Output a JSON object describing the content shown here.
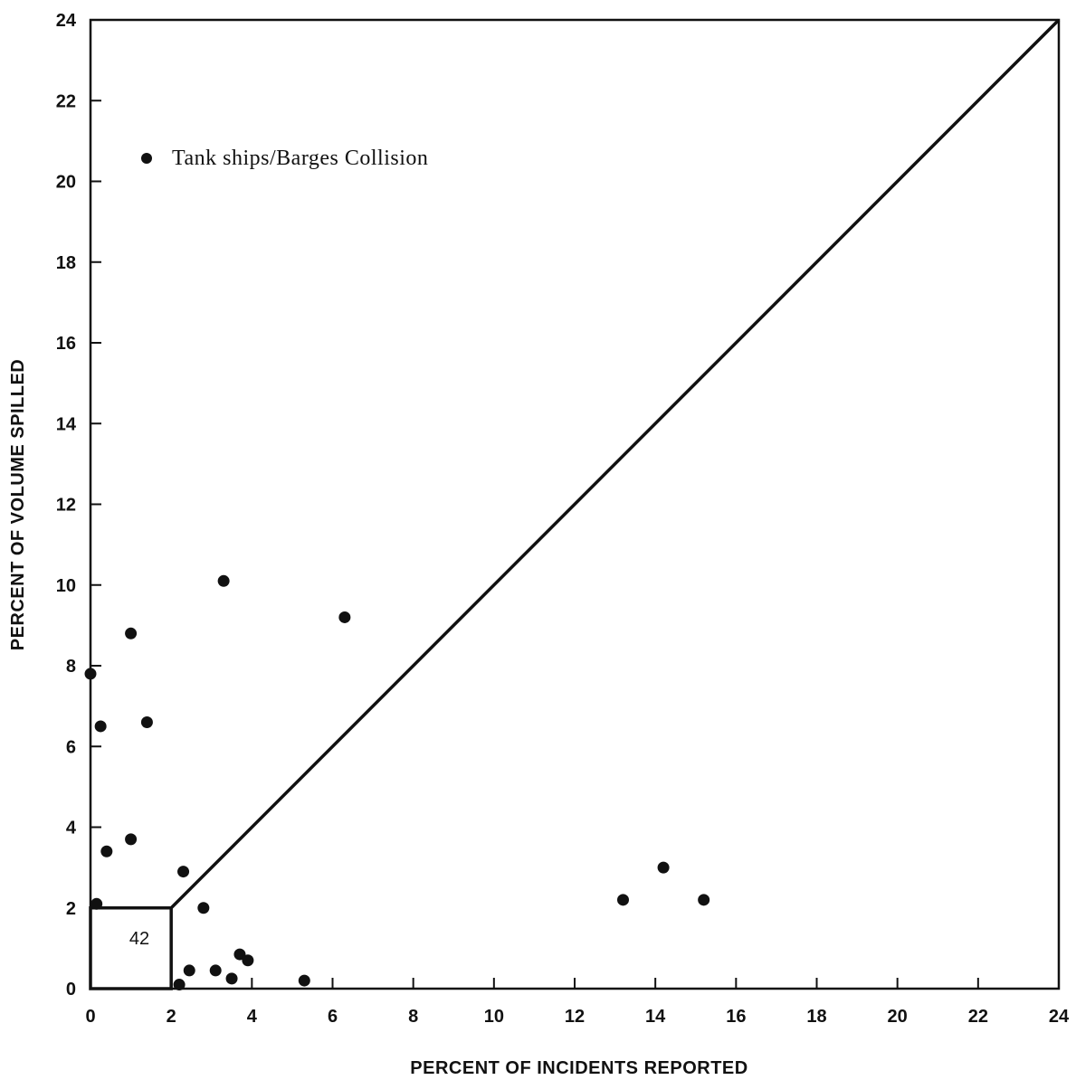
{
  "chart_data": {
    "type": "scatter",
    "xlabel": "PERCENT OF INCIDENTS REPORTED",
    "ylabel": "PERCENT OF VOLUME SPILLED",
    "xlim": [
      0,
      24
    ],
    "ylim": [
      0,
      24
    ],
    "xticks": [
      0,
      2,
      4,
      6,
      8,
      10,
      12,
      14,
      16,
      18,
      20,
      22,
      24
    ],
    "yticks": [
      0,
      2,
      4,
      6,
      8,
      10,
      12,
      14,
      16,
      18,
      20,
      22,
      24
    ],
    "legend": {
      "label": "Tank ships/Barges Collision",
      "placement": "top-left"
    },
    "reference_line": {
      "from": [
        2,
        2
      ],
      "to": [
        24,
        24
      ]
    },
    "inset_box": {
      "x": [
        0,
        2
      ],
      "y": [
        0,
        2
      ],
      "label": "42"
    },
    "points": [
      {
        "x": 0.0,
        "y": 7.8
      },
      {
        "x": 0.15,
        "y": 2.1
      },
      {
        "x": 0.25,
        "y": 6.5
      },
      {
        "x": 0.4,
        "y": 3.4
      },
      {
        "x": 1.0,
        "y": 8.8
      },
      {
        "x": 1.0,
        "y": 3.7
      },
      {
        "x": 1.4,
        "y": 6.6
      },
      {
        "x": 2.2,
        "y": 0.1
      },
      {
        "x": 2.3,
        "y": 2.9
      },
      {
        "x": 2.45,
        "y": 0.45
      },
      {
        "x": 2.8,
        "y": 2.0
      },
      {
        "x": 3.1,
        "y": 0.45
      },
      {
        "x": 3.3,
        "y": 10.1
      },
      {
        "x": 3.5,
        "y": 0.25
      },
      {
        "x": 3.7,
        "y": 0.85
      },
      {
        "x": 3.9,
        "y": 0.7
      },
      {
        "x": 5.3,
        "y": 0.2
      },
      {
        "x": 6.3,
        "y": 9.2
      },
      {
        "x": 13.2,
        "y": 2.2
      },
      {
        "x": 14.2,
        "y": 3.0
      },
      {
        "x": 15.2,
        "y": 2.2
      }
    ]
  }
}
